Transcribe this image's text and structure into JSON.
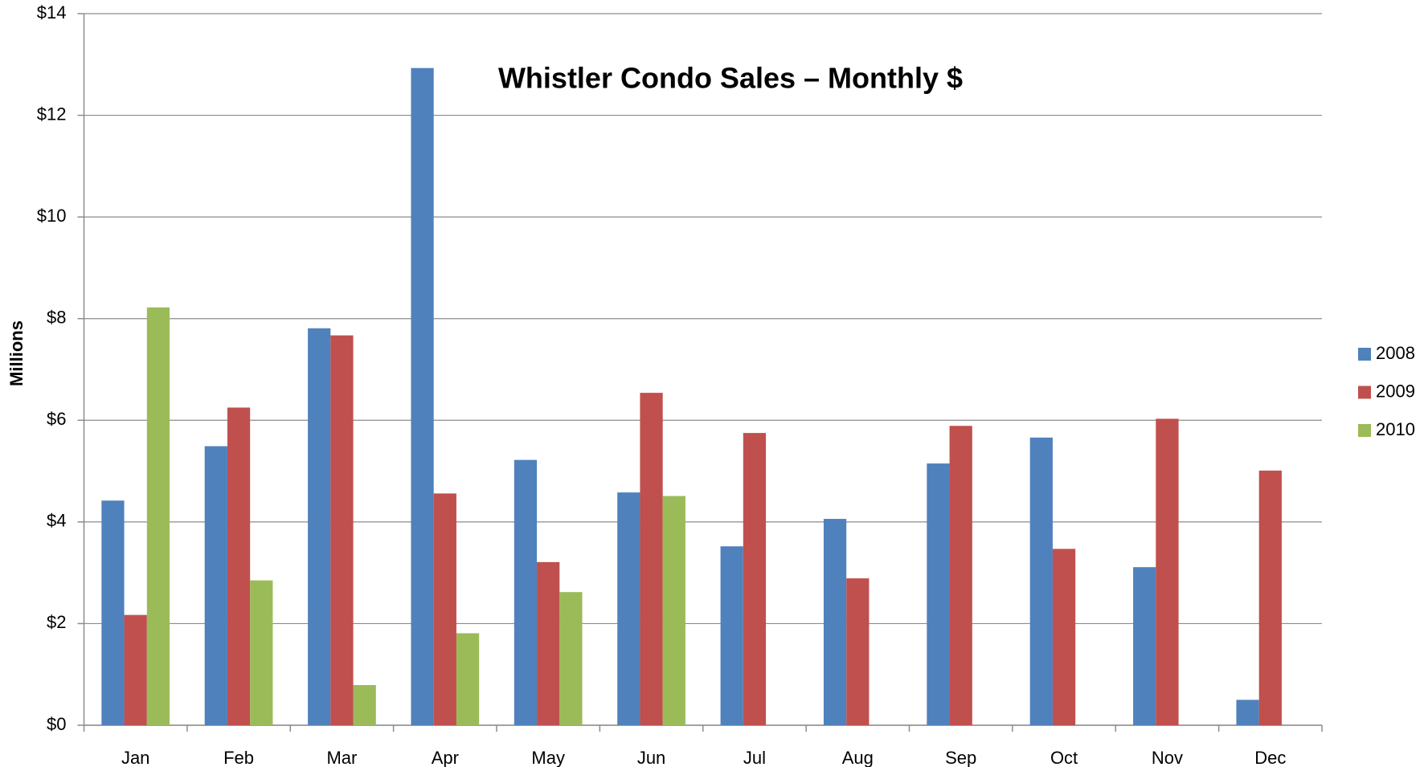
{
  "chart_data": {
    "type": "bar",
    "title": "Whistler Condo Sales – Monthly $",
    "y_label": "Millions",
    "categories": [
      "Jan",
      "Feb",
      "Mar",
      "Apr",
      "May",
      "Jun",
      "Jul",
      "Aug",
      "Sep",
      "Oct",
      "Nov",
      "Dec"
    ],
    "series": [
      {
        "name": "2008",
        "color": "#4f81bd",
        "values": [
          4.42,
          5.49,
          7.81,
          12.93,
          5.22,
          4.58,
          3.52,
          4.06,
          5.15,
          5.66,
          3.11,
          0.5
        ]
      },
      {
        "name": "2009",
        "color": "#c0504d",
        "values": [
          2.17,
          6.25,
          7.67,
          4.56,
          3.21,
          6.54,
          5.75,
          2.89,
          5.89,
          3.47,
          6.03,
          5.01
        ]
      },
      {
        "name": "2010",
        "color": "#9bbb59",
        "values": [
          8.22,
          2.85,
          0.79,
          1.81,
          2.62,
          4.51,
          null,
          null,
          null,
          null,
          null,
          null
        ]
      }
    ],
    "ylim": [
      0,
      14
    ],
    "yticks": [
      {
        "value": 0,
        "label": "$0"
      },
      {
        "value": 2,
        "label": "$2"
      },
      {
        "value": 4,
        "label": "$4"
      },
      {
        "value": 6,
        "label": "$6"
      },
      {
        "value": 8,
        "label": "$8"
      },
      {
        "value": 10,
        "label": "$10"
      },
      {
        "value": 12,
        "label": "$12"
      },
      {
        "value": 14,
        "label": "$14"
      }
    ],
    "grid": true,
    "legend": "right"
  }
}
